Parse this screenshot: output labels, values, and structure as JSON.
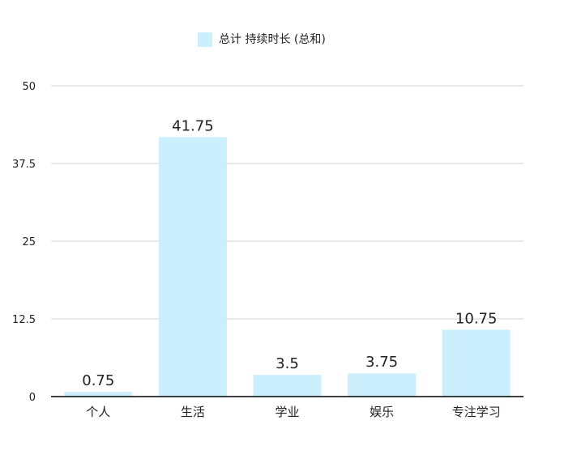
{
  "chart_data": {
    "type": "bar",
    "title": "",
    "xlabel": "",
    "ylabel": "",
    "categories": [
      "个人",
      "生活",
      "学业",
      "娱乐",
      "专注学习"
    ],
    "series": [
      {
        "name": "总计 持续时长 (总和)",
        "values": [
          0.75,
          41.75,
          3.5,
          3.75,
          10.75
        ],
        "value_labels": [
          "0.75",
          "41.75",
          "3.5",
          "3.75",
          "10.75"
        ]
      }
    ],
    "ylim": [
      0,
      50
    ],
    "yticks": [
      0,
      12.5,
      25,
      37.5,
      50
    ],
    "ytick_labels": [
      "0",
      "12.5",
      "25",
      "37.5",
      "50"
    ],
    "grid": true,
    "legend_position": "top",
    "colors": {
      "bar": "#cceffd",
      "grid": "#d3d3d3",
      "axis": "#000000",
      "text": "#222222"
    }
  }
}
